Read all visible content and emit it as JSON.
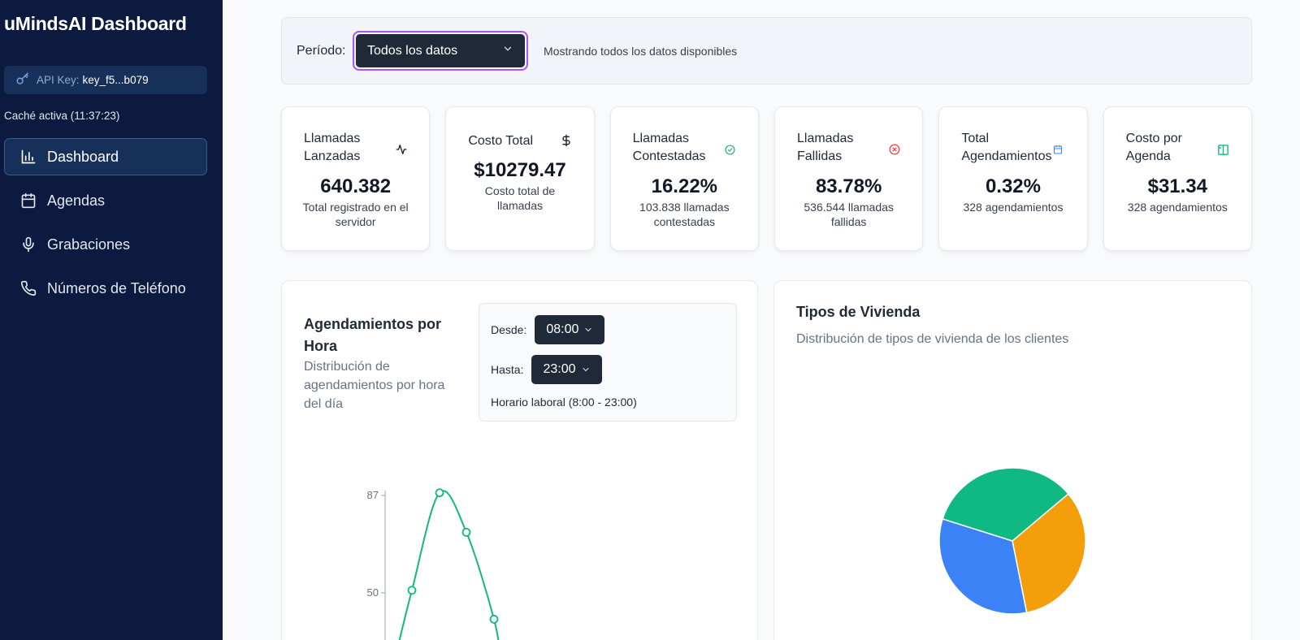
{
  "app": {
    "title": "uMindsAI Dashboard"
  },
  "sidebar": {
    "api_key_label": "API Key:",
    "api_key_value": "key_f5...b079",
    "cache_status": "Caché activa (11:37:23)",
    "items": [
      {
        "label": "Dashboard",
        "icon": "bar-chart-icon",
        "active": true
      },
      {
        "label": "Agendas",
        "icon": "calendar-icon",
        "active": false
      },
      {
        "label": "Grabaciones",
        "icon": "microphone-icon",
        "active": false
      },
      {
        "label": "Números de Teléfono",
        "icon": "phone-icon",
        "active": false
      }
    ]
  },
  "period": {
    "label": "Período:",
    "selected": "Todos los datos",
    "info": "Mostrando todos los datos disponibles"
  },
  "cards": [
    {
      "title": "Llamadas Lanzadas",
      "value": "640.382",
      "subtitle": "Total registrado en el servidor",
      "icon": "activity-icon",
      "icon_color": "#111827"
    },
    {
      "title": "Costo Total",
      "value": "$10279.47",
      "subtitle": "Costo total de llamadas",
      "icon": "dollar-icon",
      "icon_color": "#111827"
    },
    {
      "title": "Llamadas Contestadas",
      "value": "16.22%",
      "subtitle": "103.838 llamadas contestadas",
      "icon": "check-circle-icon",
      "icon_color": "#10b981"
    },
    {
      "title": "Llamadas Fallidas",
      "value": "83.78%",
      "subtitle": "536.544 llamadas fallidas",
      "icon": "x-circle-icon",
      "icon_color": "#ef4444"
    },
    {
      "title": "Total Agendamientos",
      "value": "0.32%",
      "subtitle": "328 agendamientos",
      "icon": "calendar-icon",
      "icon_color": "#3b82f6"
    },
    {
      "title": "Costo por Agenda",
      "value": "$31.34",
      "subtitle": "328 agendamientos",
      "icon": "book-icon",
      "icon_color": "#10b981"
    }
  ],
  "hourly_panel": {
    "title": "Agendamientos por Hora",
    "subtitle": "Distribución de agendamientos por hora del día",
    "from_label": "Desde:",
    "from_value": "08:00",
    "to_label": "Hasta:",
    "to_value": "23:00",
    "note": "Horario laboral (8:00 - 23:00)"
  },
  "housing_panel": {
    "title": "Tipos de Vivienda",
    "subtitle": "Distribución de tipos de vivienda de los clientes"
  },
  "chart_data": [
    {
      "type": "line",
      "y_ticks": [
        "87",
        "50"
      ],
      "y_tick_values": [
        87,
        50
      ],
      "series": [
        {
          "values": [
            51,
            88,
            73,
            40
          ],
          "color": "#10b981"
        }
      ]
    },
    {
      "type": "pie",
      "slices": [
        {
          "value": 33,
          "color": "#f59e0b"
        },
        {
          "value": 33,
          "color": "#3b82f6"
        },
        {
          "value": 34,
          "color": "#10b981"
        }
      ]
    }
  ]
}
